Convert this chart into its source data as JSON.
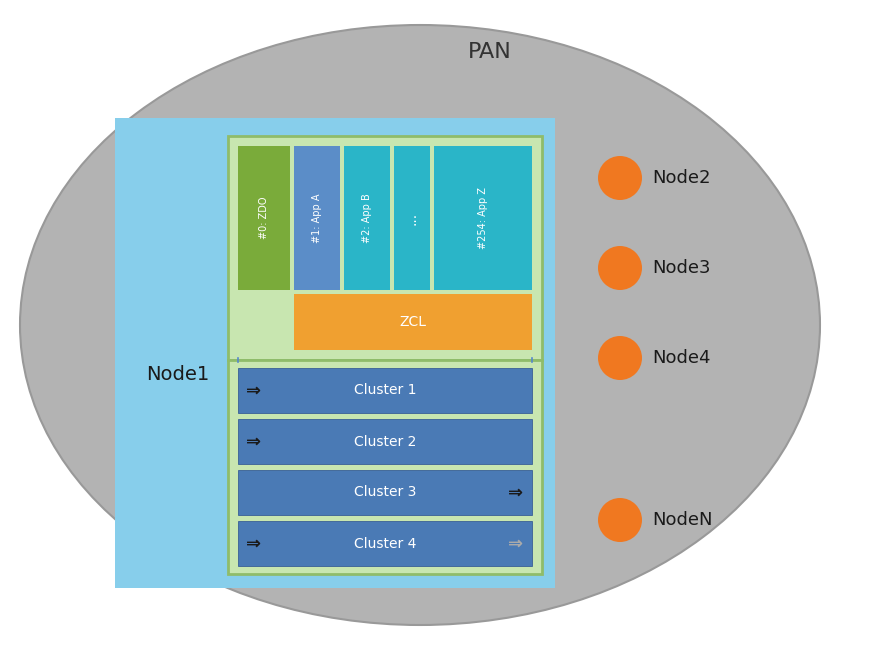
{
  "title": "PAN",
  "pan_color": "#b3b3b3",
  "pan_edge_color": "#999999",
  "node1_bg_color": "#87ceeb",
  "endpoint_outer_color": "#c8e6b0",
  "endpoint_outer_edge": "#8fbc6a",
  "zdo_color": "#7aab3a",
  "app_color": "#2ab5c8",
  "app1_color": "#5b8dc8",
  "zcl_color": "#f0a030",
  "cluster_row_color": "#4a7ab5",
  "node_circle_color": "#f07820",
  "nodes": [
    "Node2",
    "Node3",
    "Node4",
    "NodeN"
  ],
  "node1_label": "Node1",
  "clusters": [
    "Cluster 1",
    "Cluster 2",
    "Cluster 3",
    "Cluster 4"
  ],
  "endpoint_labels": [
    "#0: ZDO",
    "#1: App A",
    "#2: App B",
    "...",
    "#254: App Z"
  ],
  "zcl_label": "ZCL",
  "background_color": "#ffffff"
}
